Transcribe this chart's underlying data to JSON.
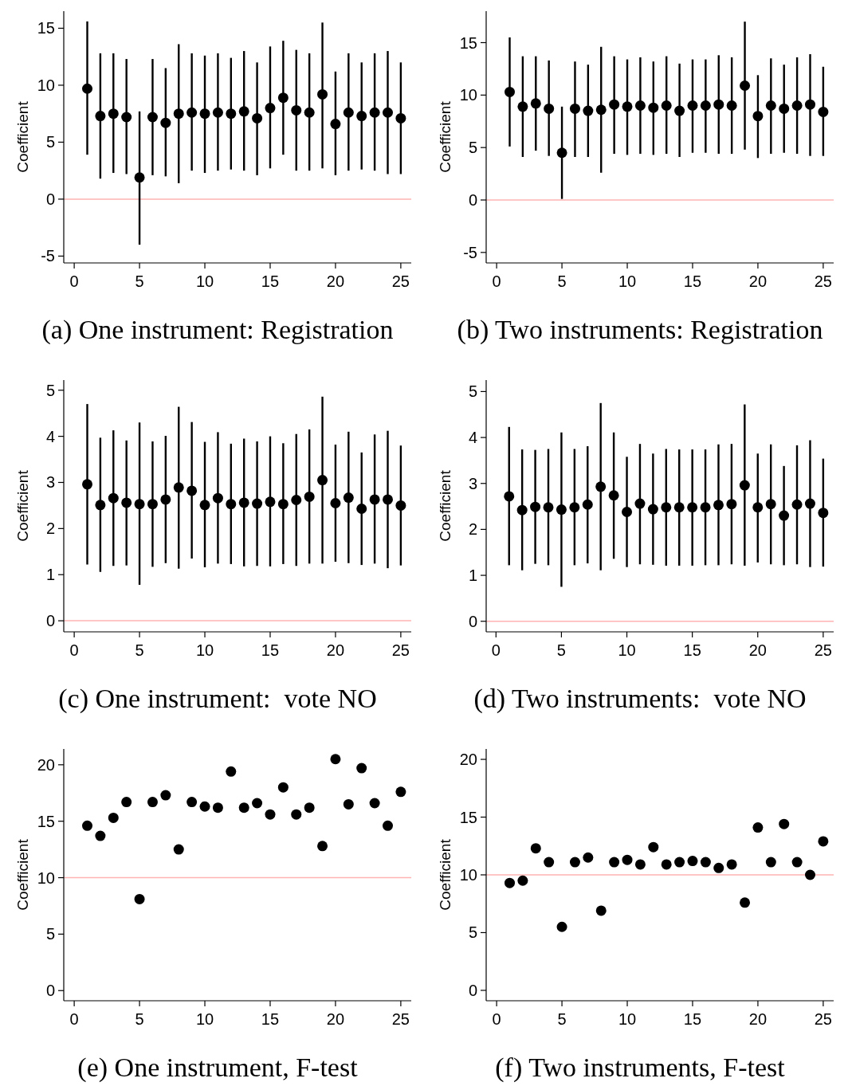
{
  "chart_data": [
    {
      "type": "scatter",
      "title": "(a) One instrument: Registration",
      "ylabel": "Coefficient",
      "color": "#000000",
      "marker": "circle",
      "x": [
        1,
        2,
        3,
        4,
        5,
        6,
        7,
        8,
        9,
        10,
        11,
        12,
        13,
        14,
        15,
        16,
        17,
        18,
        19,
        20,
        21,
        22,
        23,
        24,
        25
      ],
      "values": [
        9.7,
        7.3,
        7.5,
        7.2,
        1.9,
        7.2,
        6.7,
        7.5,
        7.6,
        7.5,
        7.6,
        7.5,
        7.7,
        7.1,
        8.0,
        8.9,
        7.8,
        7.6,
        9.2,
        6.6,
        7.6,
        7.3,
        7.6,
        7.6,
        7.1
      ],
      "errors": [
        [
          3.9,
          15.6
        ],
        [
          1.8,
          12.8
        ],
        [
          2.3,
          12.8
        ],
        [
          2.2,
          12.3
        ],
        [
          -4.0,
          7.7
        ],
        [
          2.1,
          12.3
        ],
        [
          2.0,
          11.5
        ],
        [
          1.4,
          13.6
        ],
        [
          2.5,
          12.8
        ],
        [
          2.3,
          12.6
        ],
        [
          2.5,
          12.8
        ],
        [
          2.6,
          12.4
        ],
        [
          2.5,
          13.0
        ],
        [
          2.1,
          12.0
        ],
        [
          2.7,
          13.4
        ],
        [
          3.9,
          13.9
        ],
        [
          2.5,
          13.1
        ],
        [
          2.5,
          12.8
        ],
        [
          2.7,
          15.5
        ],
        [
          2.1,
          11.2
        ],
        [
          2.5,
          12.8
        ],
        [
          2.6,
          12.0
        ],
        [
          2.5,
          12.8
        ],
        [
          2.2,
          13.0
        ],
        [
          2.2,
          12.0
        ]
      ],
      "xlim": [
        -0.8,
        25.8
      ],
      "xticks": [
        0,
        5,
        10,
        15,
        20,
        25
      ],
      "ylim": [
        -5.6,
        16.5
      ],
      "yticks": [
        -5,
        0,
        5,
        10,
        15
      ],
      "ref_lines": [
        {
          "axis": "y",
          "value": 0,
          "color": "#ffb3b3"
        }
      ]
    },
    {
      "type": "scatter",
      "title": "(b) Two instruments: Registration",
      "ylabel": "Coefficient",
      "color": "#000000",
      "marker": "circle",
      "x": [
        1,
        2,
        3,
        4,
        5,
        6,
        7,
        8,
        9,
        10,
        11,
        12,
        13,
        14,
        15,
        16,
        17,
        18,
        19,
        20,
        21,
        22,
        23,
        24,
        25
      ],
      "values": [
        10.3,
        8.9,
        9.2,
        8.7,
        4.5,
        8.7,
        8.5,
        8.6,
        9.1,
        8.9,
        9.0,
        8.8,
        9.0,
        8.5,
        9.0,
        9.0,
        9.1,
        9.0,
        10.9,
        8.0,
        9.0,
        8.7,
        9.0,
        9.1,
        8.4
      ],
      "errors": [
        [
          5.1,
          15.5
        ],
        [
          4.1,
          13.7
        ],
        [
          4.7,
          13.7
        ],
        [
          4.2,
          13.3
        ],
        [
          0.1,
          8.9
        ],
        [
          4.1,
          13.2
        ],
        [
          4.1,
          12.9
        ],
        [
          2.6,
          14.6
        ],
        [
          4.4,
          13.7
        ],
        [
          4.3,
          13.4
        ],
        [
          4.4,
          13.6
        ],
        [
          4.3,
          13.2
        ],
        [
          4.4,
          13.7
        ],
        [
          4.1,
          13.0
        ],
        [
          4.5,
          13.4
        ],
        [
          4.5,
          13.4
        ],
        [
          4.4,
          13.8
        ],
        [
          4.4,
          13.6
        ],
        [
          4.8,
          17.0
        ],
        [
          4.0,
          11.9
        ],
        [
          4.4,
          13.5
        ],
        [
          4.5,
          12.9
        ],
        [
          4.4,
          13.6
        ],
        [
          4.2,
          13.9
        ],
        [
          4.2,
          12.7
        ]
      ],
      "xlim": [
        -0.8,
        25.8
      ],
      "xticks": [
        0,
        5,
        10,
        15,
        20,
        25
      ],
      "ylim": [
        -6.0,
        18.0
      ],
      "yticks": [
        -5,
        0,
        5,
        10,
        15
      ],
      "ref_lines": [
        {
          "axis": "y",
          "value": 0,
          "color": "#ffb3b3"
        }
      ]
    },
    {
      "type": "scatter",
      "title": "(c) One instrument:  vote NO",
      "ylabel": "Coefficient",
      "color": "#000000",
      "marker": "circle",
      "x": [
        1,
        2,
        3,
        4,
        5,
        6,
        7,
        8,
        9,
        10,
        11,
        12,
        13,
        14,
        15,
        16,
        17,
        18,
        19,
        20,
        21,
        22,
        23,
        24,
        25
      ],
      "values": [
        2.96,
        2.51,
        2.66,
        2.56,
        2.53,
        2.53,
        2.63,
        2.89,
        2.82,
        2.51,
        2.66,
        2.53,
        2.56,
        2.54,
        2.58,
        2.53,
        2.62,
        2.69,
        3.05,
        2.55,
        2.67,
        2.43,
        2.63,
        2.63,
        2.5
      ],
      "errors": [
        [
          1.22,
          4.7
        ],
        [
          1.06,
          3.97
        ],
        [
          1.19,
          4.13
        ],
        [
          1.2,
          3.91
        ],
        [
          0.78,
          4.3
        ],
        [
          1.17,
          3.89
        ],
        [
          1.25,
          4.01
        ],
        [
          1.13,
          4.64
        ],
        [
          1.35,
          4.31
        ],
        [
          1.16,
          3.88
        ],
        [
          1.24,
          4.09
        ],
        [
          1.23,
          3.84
        ],
        [
          1.18,
          3.95
        ],
        [
          1.19,
          3.89
        ],
        [
          1.18,
          4.0
        ],
        [
          1.23,
          3.85
        ],
        [
          1.19,
          4.05
        ],
        [
          1.24,
          4.15
        ],
        [
          1.24,
          4.86
        ],
        [
          1.28,
          3.82
        ],
        [
          1.25,
          4.1
        ],
        [
          1.21,
          3.65
        ],
        [
          1.24,
          4.04
        ],
        [
          1.14,
          4.12
        ],
        [
          1.2,
          3.8
        ]
      ],
      "xlim": [
        -0.8,
        25.8
      ],
      "xticks": [
        0,
        5,
        10,
        15,
        20,
        25
      ],
      "ylim": [
        -0.24,
        5.22
      ],
      "yticks": [
        0,
        1,
        2,
        3,
        4,
        5
      ],
      "ref_lines": [
        {
          "axis": "y",
          "value": 0,
          "color": "#ffb3b3"
        }
      ]
    },
    {
      "type": "scatter",
      "title": "(d) Two instruments:  vote NO",
      "ylabel": "Coefficient",
      "color": "#000000",
      "marker": "circle",
      "x": [
        1,
        2,
        3,
        4,
        5,
        6,
        7,
        8,
        9,
        10,
        11,
        12,
        13,
        14,
        15,
        16,
        17,
        18,
        19,
        20,
        21,
        22,
        23,
        24,
        25
      ],
      "values": [
        2.72,
        2.42,
        2.49,
        2.48,
        2.43,
        2.48,
        2.54,
        2.93,
        2.74,
        2.38,
        2.56,
        2.44,
        2.48,
        2.48,
        2.48,
        2.48,
        2.53,
        2.55,
        2.96,
        2.48,
        2.55,
        2.3,
        2.54,
        2.56,
        2.36
      ],
      "errors": [
        [
          1.22,
          4.23
        ],
        [
          1.11,
          3.74
        ],
        [
          1.25,
          3.73
        ],
        [
          1.22,
          3.75
        ],
        [
          0.75,
          4.11
        ],
        [
          1.22,
          3.75
        ],
        [
          1.26,
          3.81
        ],
        [
          1.11,
          4.75
        ],
        [
          1.36,
          4.11
        ],
        [
          1.18,
          3.58
        ],
        [
          1.24,
          3.86
        ],
        [
          1.23,
          3.65
        ],
        [
          1.21,
          3.75
        ],
        [
          1.21,
          3.74
        ],
        [
          1.21,
          3.74
        ],
        [
          1.22,
          3.74
        ],
        [
          1.22,
          3.85
        ],
        [
          1.24,
          3.86
        ],
        [
          1.21,
          4.72
        ],
        [
          1.28,
          3.65
        ],
        [
          1.24,
          3.85
        ],
        [
          1.22,
          3.38
        ],
        [
          1.24,
          3.83
        ],
        [
          1.18,
          3.94
        ],
        [
          1.19,
          3.54
        ]
      ],
      "xlim": [
        -0.75,
        25.8
      ],
      "xticks": [
        0,
        5,
        10,
        15,
        20,
        25
      ],
      "ylim": [
        -0.23,
        5.25
      ],
      "yticks": [
        0,
        1,
        2,
        3,
        4,
        5
      ],
      "ref_lines": [
        {
          "axis": "y",
          "value": 0,
          "color": "#ffb3b3"
        }
      ]
    },
    {
      "type": "scatter",
      "title": "(e) One instrument, F-test",
      "ylabel": "Coefficient",
      "color": "#000000",
      "marker": "circle",
      "x": [
        1,
        2,
        3,
        4,
        5,
        6,
        7,
        8,
        9,
        10,
        11,
        12,
        13,
        14,
        15,
        16,
        17,
        18,
        19,
        20,
        21,
        22,
        23,
        24,
        25
      ],
      "values": [
        14.6,
        13.7,
        15.3,
        16.7,
        8.1,
        16.7,
        17.3,
        12.5,
        16.7,
        16.3,
        16.2,
        19.4,
        16.2,
        16.6,
        15.6,
        18.0,
        15.6,
        16.2,
        12.8,
        20.5,
        16.5,
        19.7,
        16.6,
        14.6,
        17.6
      ],
      "xlim": [
        -0.8,
        25.8
      ],
      "xticks": [
        0,
        5,
        10,
        15,
        20,
        25
      ],
      "ylim": [
        -0.9,
        21.4
      ],
      "yticks": [
        0,
        5,
        10,
        15,
        20
      ],
      "ref_lines": [
        {
          "axis": "y",
          "value": 10,
          "color": "#ffb3b3"
        }
      ]
    },
    {
      "type": "scatter",
      "title": "(f) Two instruments, F-test",
      "ylabel": "Coefficient",
      "color": "#000000",
      "marker": "circle",
      "x": [
        1,
        2,
        3,
        4,
        5,
        6,
        7,
        8,
        9,
        10,
        11,
        12,
        13,
        14,
        15,
        16,
        17,
        18,
        19,
        20,
        21,
        22,
        23,
        24,
        25
      ],
      "values": [
        9.3,
        9.5,
        12.3,
        11.1,
        5.5,
        11.1,
        11.5,
        6.9,
        11.1,
        11.3,
        10.9,
        12.4,
        10.9,
        11.1,
        11.2,
        11.1,
        10.6,
        10.9,
        7.6,
        14.1,
        11.1,
        14.4,
        11.1,
        10.0,
        12.9
      ],
      "xlim": [
        -0.8,
        25.8
      ],
      "xticks": [
        0,
        5,
        10,
        15,
        20,
        25
      ],
      "ylim": [
        -0.9,
        20.9
      ],
      "yticks": [
        0,
        5,
        10,
        15,
        20
      ],
      "ref_lines": [
        {
          "axis": "y",
          "value": 10,
          "color": "#ffb3b3"
        }
      ]
    }
  ]
}
